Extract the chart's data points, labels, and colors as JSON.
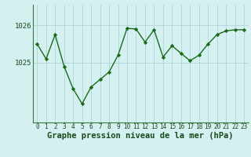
{
  "x": [
    0,
    1,
    2,
    3,
    4,
    5,
    6,
    7,
    8,
    9,
    10,
    11,
    12,
    13,
    14,
    15,
    16,
    17,
    18,
    19,
    20,
    21,
    22,
    23
  ],
  "y": [
    1025.5,
    1025.1,
    1025.75,
    1024.9,
    1024.3,
    1023.9,
    1024.35,
    1024.55,
    1024.75,
    1025.2,
    1025.92,
    1025.9,
    1025.55,
    1025.88,
    1025.15,
    1025.45,
    1025.25,
    1025.05,
    1025.2,
    1025.5,
    1025.75,
    1025.85,
    1025.88,
    1025.88
  ],
  "line_color": "#1a6b1a",
  "marker_color": "#1a6b1a",
  "bg_color": "#d4f0f0",
  "grid_color": "#b0d4d4",
  "axis_line_color": "#3a7a3a",
  "text_color": "#1a4a1a",
  "xlabel_label": "Graphe pression niveau de la mer (hPa)",
  "ylim_min": 1023.4,
  "ylim_max": 1026.55,
  "yticks": [
    1025,
    1026
  ],
  "tick_fontsize": 6.5,
  "xlabel_fontsize": 7.5
}
